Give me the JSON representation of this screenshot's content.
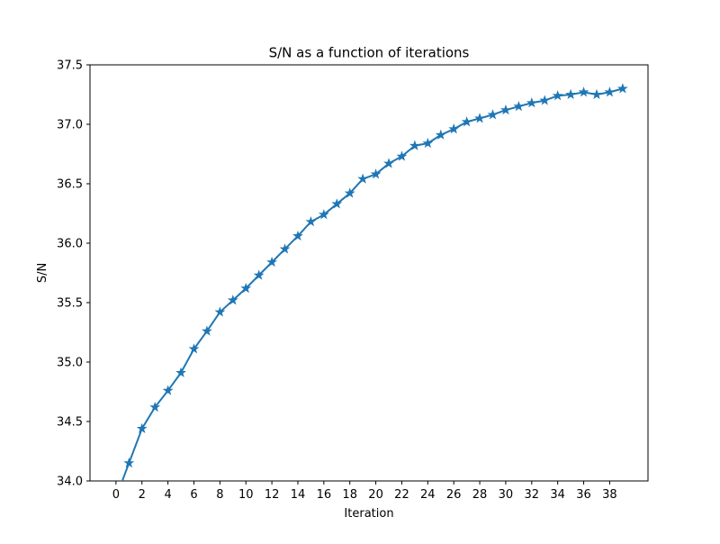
{
  "chart_data": {
    "type": "line",
    "title": "S/N as a function of iterations",
    "xlabel": "Iteration",
    "ylabel": "S/N",
    "xlim": [
      -2.0,
      40.95
    ],
    "ylim": [
      34.0,
      37.5
    ],
    "xticks": [
      0,
      2,
      4,
      6,
      8,
      10,
      12,
      14,
      16,
      18,
      20,
      22,
      24,
      26,
      28,
      30,
      32,
      34,
      36,
      38
    ],
    "yticks": [
      "34.0",
      "34.5",
      "35.0",
      "35.5",
      "36.0",
      "36.5",
      "37.0",
      "37.5"
    ],
    "grid": false,
    "marker": "star",
    "color": "#1f77b4",
    "series": [
      {
        "x": [
          0,
          1,
          2,
          3,
          4,
          5,
          6,
          7,
          8,
          9,
          10,
          11,
          12,
          13,
          14,
          15,
          16,
          17,
          18,
          19,
          20,
          21,
          22,
          23,
          24,
          25,
          26,
          27,
          28,
          29,
          30,
          31,
          32,
          33,
          34,
          35,
          36,
          37,
          38,
          39
        ],
        "values": [
          33.86,
          34.15,
          34.44,
          34.62,
          34.76,
          34.91,
          35.11,
          35.26,
          35.42,
          35.52,
          35.62,
          35.73,
          35.84,
          35.95,
          36.06,
          36.18,
          36.24,
          36.33,
          36.42,
          36.54,
          36.58,
          36.67,
          36.73,
          36.82,
          36.84,
          36.91,
          36.96,
          37.02,
          37.05,
          37.08,
          37.12,
          37.15,
          37.18,
          37.2,
          37.24,
          37.25,
          37.27,
          37.25,
          37.27,
          37.3
        ]
      }
    ]
  }
}
